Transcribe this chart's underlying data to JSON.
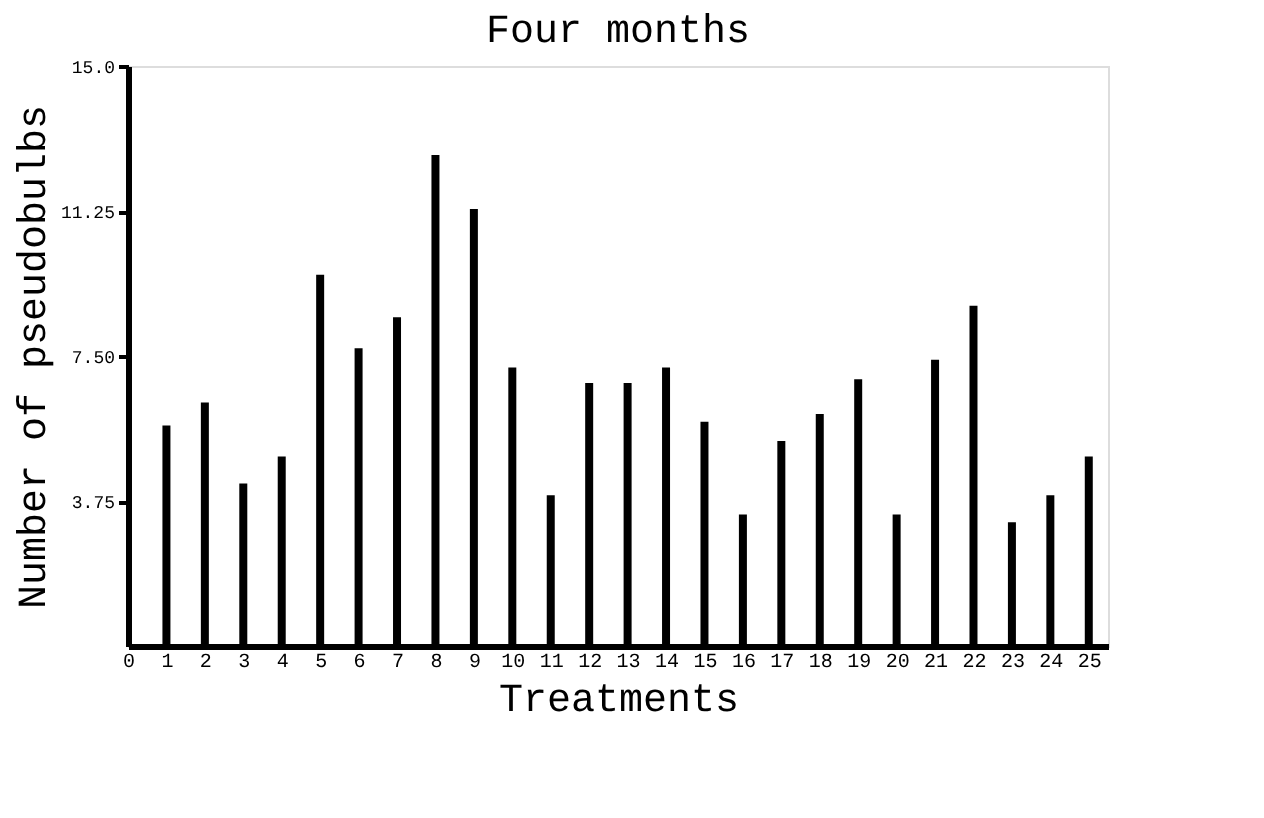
{
  "chart_data": {
    "type": "bar",
    "title": "Four months",
    "xlabel": "Treatments",
    "ylabel": "Number of pseudobulbs",
    "x": [
      1,
      2,
      3,
      4,
      5,
      6,
      7,
      8,
      9,
      10,
      11,
      12,
      13,
      14,
      15,
      16,
      17,
      18,
      19,
      20,
      21,
      22,
      23,
      24,
      25
    ],
    "values": [
      5.7,
      6.3,
      4.2,
      4.9,
      9.6,
      7.7,
      8.5,
      12.7,
      11.3,
      7.2,
      3.9,
      6.8,
      6.8,
      7.2,
      5.8,
      3.4,
      5.3,
      6.0,
      6.9,
      3.4,
      7.4,
      8.8,
      3.2,
      3.9,
      4.9
    ],
    "color": "#000000",
    "xlim": [
      0,
      25.5
    ],
    "xticks": [
      0,
      1,
      2,
      3,
      4,
      5,
      6,
      7,
      8,
      9,
      10,
      11,
      12,
      13,
      14,
      15,
      16,
      17,
      18,
      19,
      20,
      21,
      22,
      23,
      24,
      25
    ],
    "ylim": [
      0,
      15
    ],
    "yticks": [
      {
        "value": 3.75,
        "label": "3.75"
      },
      {
        "value": 7.5,
        "label": "7.50"
      },
      {
        "value": 11.25,
        "label": "11.25"
      },
      {
        "value": 15,
        "label": "15.0"
      }
    ],
    "grid": false
  }
}
